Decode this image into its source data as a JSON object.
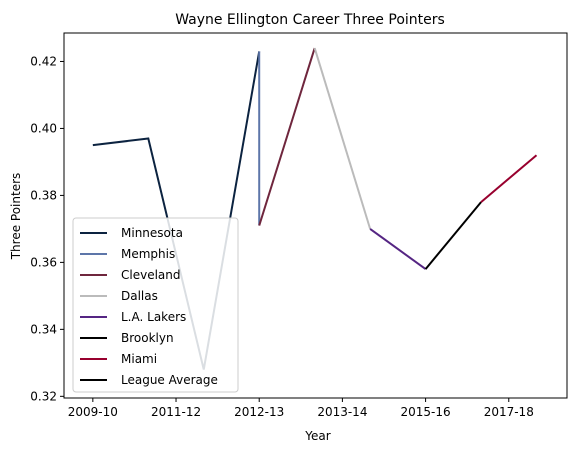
{
  "chart_data": {
    "type": "line",
    "title": "Wayne Ellington Career Three Pointers",
    "xlabel": "Year",
    "ylabel": "Three Pointers",
    "x_ticks": [
      {
        "x": 0,
        "label": "2009-10"
      },
      {
        "x": 1.5,
        "label": "2011-12"
      },
      {
        "x": 3,
        "label": "2012-13"
      },
      {
        "x": 4.5,
        "label": "2013-14"
      },
      {
        "x": 6,
        "label": "2015-16"
      },
      {
        "x": 7.5,
        "label": "2017-18"
      }
    ],
    "y_ticks": [
      0.32,
      0.34,
      0.36,
      0.38,
      0.4,
      0.42
    ],
    "xlim": [
      -0.52,
      8.55
    ],
    "ylim": [
      0.3195,
      0.4285
    ],
    "legend_position": "lower left",
    "grid": false,
    "series": [
      {
        "name": "Minnesota",
        "color": "#0c2340",
        "x": [
          0,
          1,
          2,
          3
        ],
        "y": [
          0.395,
          0.397,
          0.328,
          0.423
        ]
      },
      {
        "name": "Memphis",
        "color": "#5d76a9",
        "x": [
          3,
          3
        ],
        "y": [
          0.423,
          0.371
        ]
      },
      {
        "name": "Cleveland",
        "color": "#6f263d",
        "x": [
          3,
          4
        ],
        "y": [
          0.371,
          0.424
        ]
      },
      {
        "name": "Dallas",
        "color": "#bbbbbb",
        "x": [
          4,
          5
        ],
        "y": [
          0.424,
          0.37
        ]
      },
      {
        "name": "L.A. Lakers",
        "color": "#552583",
        "x": [
          5,
          6
        ],
        "y": [
          0.37,
          0.358
        ]
      },
      {
        "name": "Brooklyn",
        "color": "#000000",
        "x": [
          6,
          7
        ],
        "y": [
          0.358,
          0.378
        ]
      },
      {
        "name": "Miami",
        "color": "#98002e",
        "x": [
          7,
          8
        ],
        "y": [
          0.378,
          0.392
        ]
      },
      {
        "name": "League Average",
        "color": "#000000",
        "x": [],
        "y": []
      }
    ]
  }
}
